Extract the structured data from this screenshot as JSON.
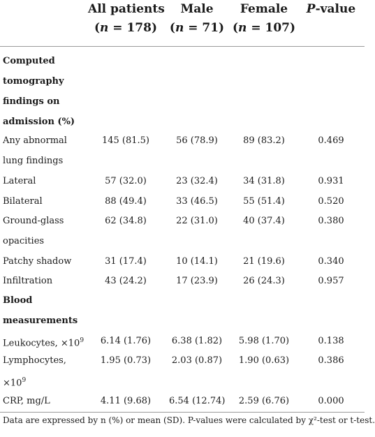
{
  "table": {
    "columns": [
      {
        "title": "All patients",
        "n_sym": "n",
        "n_rest": " = 178)"
      },
      {
        "title": "Male",
        "n_sym": "n",
        "n_rest": " = 71)"
      },
      {
        "title": "Female",
        "n_sym": "n",
        "n_rest": " = 107)"
      },
      {
        "title": "P",
        "title_suffix": "-value"
      }
    ],
    "rows": [
      {
        "type": "section",
        "label_lines": [
          "Computed",
          "tomography",
          "findings on",
          "admission (%)"
        ]
      },
      {
        "type": "data",
        "label_lines": [
          "Any abnormal",
          "lung findings"
        ],
        "values": [
          "145 (81.5)",
          "56 (78.9)",
          "89 (83.2)",
          "0.469"
        ]
      },
      {
        "type": "data",
        "label_lines": [
          "Lateral"
        ],
        "values": [
          "57 (32.0)",
          "23 (32.4)",
          "34 (31.8)",
          "0.931"
        ]
      },
      {
        "type": "data",
        "label_lines": [
          "Bilateral"
        ],
        "values": [
          "88 (49.4)",
          "33 (46.5)",
          "55 (51.4)",
          "0.520"
        ]
      },
      {
        "type": "data",
        "label_lines": [
          "Ground-glass",
          "opacities"
        ],
        "values": [
          "62 (34.8)",
          "22 (31.0)",
          "40 (37.4)",
          "0.380"
        ]
      },
      {
        "type": "data",
        "label_lines": [
          "Patchy shadow"
        ],
        "values": [
          "31 (17.4)",
          "10 (14.1)",
          "21 (19.6)",
          "0.340"
        ]
      },
      {
        "type": "data",
        "label_lines": [
          "Infiltration"
        ],
        "values": [
          "43 (24.2)",
          "17 (23.9)",
          "26 (24.3)",
          "0.957"
        ]
      },
      {
        "type": "section",
        "label_lines": [
          "Blood",
          "measurements"
        ]
      },
      {
        "type": "data",
        "label_lines": [
          "Leukocytes, ×10"
        ],
        "label_sup": "9",
        "values": [
          "6.14 (1.76)",
          "6.38 (1.82)",
          "5.98 (1.70)",
          "0.138"
        ]
      },
      {
        "type": "data",
        "label_lines": [
          "Lymphocytes,",
          "×10"
        ],
        "label_sup": "9",
        "values": [
          "1.95 (0.73)",
          "2.03 (0.87)",
          "1.90 (0.63)",
          "0.386"
        ]
      },
      {
        "type": "data",
        "label_lines": [
          "CRP, mg/L"
        ],
        "values": [
          "4.11 (9.68)",
          "6.54 (12.74)",
          "2.59 (6.76)",
          "0.000"
        ]
      }
    ],
    "footnote": "Data are expressed by n (%) or mean (SD). P-values were calculated by χ²-test or t-test."
  }
}
